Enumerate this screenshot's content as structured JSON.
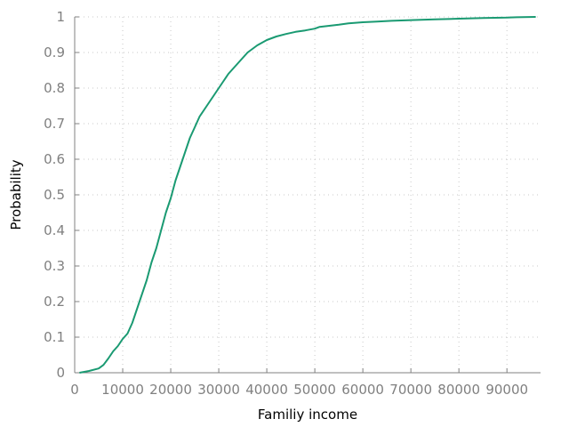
{
  "chart_data": {
    "type": "line",
    "xlabel": "Familiy income",
    "ylabel": "Probability",
    "xlim": [
      0,
      97000
    ],
    "ylim": [
      0,
      1
    ],
    "x_ticks": [
      0,
      10000,
      20000,
      30000,
      40000,
      50000,
      60000,
      70000,
      80000,
      90000
    ],
    "y_ticks": [
      0,
      0.1,
      0.2,
      0.3,
      0.4,
      0.5,
      0.6,
      0.7,
      0.8,
      0.9,
      1
    ],
    "x_tick_labels": [
      "0",
      "10000",
      "20000",
      "30000",
      "40000",
      "50000",
      "60000",
      "70000",
      "80000",
      "90000"
    ],
    "y_tick_labels": [
      "0",
      "0.1",
      "0.2",
      "0.3",
      "0.4",
      "0.5",
      "0.6",
      "0.7",
      "0.8",
      "0.9",
      "1"
    ],
    "grid": true,
    "legend": "none",
    "series": [
      {
        "color": "#1a9a72",
        "x": [
          1000,
          3000,
          5000,
          6000,
          7000,
          8000,
          9000,
          10000,
          11000,
          12000,
          13000,
          14000,
          15000,
          16000,
          17000,
          18000,
          19000,
          20000,
          21000,
          22000,
          23000,
          24000,
          25000,
          26000,
          27000,
          28000,
          29000,
          30000,
          31000,
          32000,
          33000,
          34000,
          35000,
          36000,
          37000,
          38000,
          40000,
          42000,
          44000,
          46000,
          48000,
          50000,
          51000,
          53000,
          55000,
          57000,
          60000,
          63000,
          66000,
          70000,
          75000,
          80000,
          85000,
          90000,
          92000,
          96000
        ],
        "y": [
          0.0,
          0.005,
          0.012,
          0.022,
          0.04,
          0.06,
          0.075,
          0.095,
          0.11,
          0.14,
          0.18,
          0.22,
          0.26,
          0.31,
          0.35,
          0.4,
          0.45,
          0.49,
          0.54,
          0.58,
          0.62,
          0.66,
          0.69,
          0.72,
          0.74,
          0.76,
          0.78,
          0.8,
          0.82,
          0.84,
          0.855,
          0.87,
          0.885,
          0.9,
          0.91,
          0.92,
          0.935,
          0.945,
          0.952,
          0.958,
          0.962,
          0.967,
          0.972,
          0.975,
          0.978,
          0.982,
          0.985,
          0.987,
          0.989,
          0.991,
          0.993,
          0.995,
          0.997,
          0.998,
          0.999,
          1.0
        ]
      }
    ]
  }
}
